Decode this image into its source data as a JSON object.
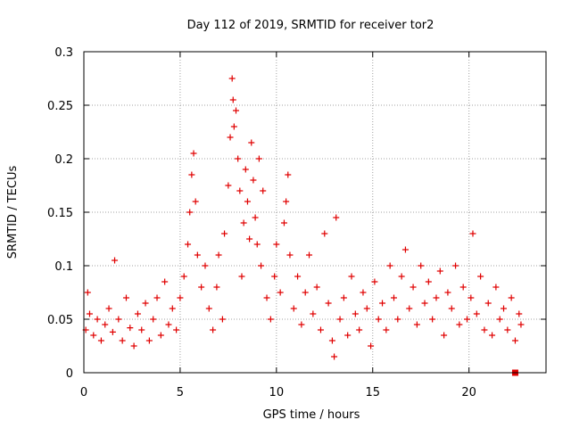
{
  "chart_data": {
    "type": "scatter",
    "title": "Day 112 of 2019, SRMTID for receiver tor2",
    "xlabel": "GPS time / hours",
    "ylabel": "SRMTID / TECUs",
    "xlim": [
      0,
      24
    ],
    "ylim": [
      0,
      0.3
    ],
    "xticks": [
      0,
      5,
      10,
      15,
      20
    ],
    "xtick_labels": [
      "0",
      "5",
      "10",
      "15",
      "20"
    ],
    "yticks": [
      0,
      0.05,
      0.1,
      0.15,
      0.2,
      0.25,
      0.3
    ],
    "ytick_labels": [
      "0",
      "0.05",
      "0.1",
      "0.15",
      "0.2",
      "0.25",
      "0.3"
    ],
    "grid": true,
    "series": [
      {
        "name": "SRMTID",
        "marker": "plus",
        "color": "#e00000",
        "points": [
          [
            0.1,
            0.04
          ],
          [
            0.2,
            0.075
          ],
          [
            0.3,
            0.055
          ],
          [
            0.5,
            0.035
          ],
          [
            0.7,
            0.05
          ],
          [
            0.9,
            0.03
          ],
          [
            1.1,
            0.045
          ],
          [
            1.3,
            0.06
          ],
          [
            1.5,
            0.038
          ],
          [
            1.6,
            0.105
          ],
          [
            1.8,
            0.05
          ],
          [
            2.0,
            0.03
          ],
          [
            2.2,
            0.07
          ],
          [
            2.4,
            0.042
          ],
          [
            2.6,
            0.025
          ],
          [
            2.8,
            0.055
          ],
          [
            3.0,
            0.04
          ],
          [
            3.2,
            0.065
          ],
          [
            3.4,
            0.03
          ],
          [
            3.6,
            0.05
          ],
          [
            3.8,
            0.07
          ],
          [
            4.0,
            0.035
          ],
          [
            4.2,
            0.085
          ],
          [
            4.4,
            0.045
          ],
          [
            4.6,
            0.06
          ],
          [
            4.8,
            0.04
          ],
          [
            5.0,
            0.07
          ],
          [
            5.2,
            0.09
          ],
          [
            5.4,
            0.12
          ],
          [
            5.5,
            0.15
          ],
          [
            5.6,
            0.185
          ],
          [
            5.7,
            0.205
          ],
          [
            5.8,
            0.16
          ],
          [
            5.9,
            0.11
          ],
          [
            6.1,
            0.08
          ],
          [
            6.3,
            0.1
          ],
          [
            6.5,
            0.06
          ],
          [
            6.7,
            0.04
          ],
          [
            6.9,
            0.08
          ],
          [
            7.0,
            0.11
          ],
          [
            7.2,
            0.05
          ],
          [
            7.3,
            0.13
          ],
          [
            7.5,
            0.175
          ],
          [
            7.6,
            0.22
          ],
          [
            7.7,
            0.275
          ],
          [
            7.75,
            0.255
          ],
          [
            7.8,
            0.23
          ],
          [
            7.9,
            0.245
          ],
          [
            8.0,
            0.2
          ],
          [
            8.1,
            0.17
          ],
          [
            8.2,
            0.09
          ],
          [
            8.3,
            0.14
          ],
          [
            8.4,
            0.19
          ],
          [
            8.5,
            0.16
          ],
          [
            8.6,
            0.125
          ],
          [
            8.7,
            0.215
          ],
          [
            8.8,
            0.18
          ],
          [
            8.9,
            0.145
          ],
          [
            9.0,
            0.12
          ],
          [
            9.1,
            0.2
          ],
          [
            9.2,
            0.1
          ],
          [
            9.3,
            0.17
          ],
          [
            9.5,
            0.07
          ],
          [
            9.7,
            0.05
          ],
          [
            9.9,
            0.09
          ],
          [
            10.0,
            0.12
          ],
          [
            10.2,
            0.075
          ],
          [
            10.4,
            0.14
          ],
          [
            10.5,
            0.16
          ],
          [
            10.6,
            0.185
          ],
          [
            10.7,
            0.11
          ],
          [
            10.9,
            0.06
          ],
          [
            11.1,
            0.09
          ],
          [
            11.3,
            0.045
          ],
          [
            11.5,
            0.075
          ],
          [
            11.7,
            0.11
          ],
          [
            11.9,
            0.055
          ],
          [
            12.1,
            0.08
          ],
          [
            12.3,
            0.04
          ],
          [
            12.5,
            0.13
          ],
          [
            12.7,
            0.065
          ],
          [
            12.9,
            0.03
          ],
          [
            13.0,
            0.015
          ],
          [
            13.1,
            0.145
          ],
          [
            13.3,
            0.05
          ],
          [
            13.5,
            0.07
          ],
          [
            13.7,
            0.035
          ],
          [
            13.9,
            0.09
          ],
          [
            14.1,
            0.055
          ],
          [
            14.3,
            0.04
          ],
          [
            14.5,
            0.075
          ],
          [
            14.7,
            0.06
          ],
          [
            14.9,
            0.025
          ],
          [
            15.1,
            0.085
          ],
          [
            15.3,
            0.05
          ],
          [
            15.5,
            0.065
          ],
          [
            15.7,
            0.04
          ],
          [
            15.9,
            0.1
          ],
          [
            16.1,
            0.07
          ],
          [
            16.3,
            0.05
          ],
          [
            16.5,
            0.09
          ],
          [
            16.7,
            0.115
          ],
          [
            16.9,
            0.06
          ],
          [
            17.1,
            0.08
          ],
          [
            17.3,
            0.045
          ],
          [
            17.5,
            0.1
          ],
          [
            17.7,
            0.065
          ],
          [
            17.9,
            0.085
          ],
          [
            18.1,
            0.05
          ],
          [
            18.3,
            0.07
          ],
          [
            18.5,
            0.095
          ],
          [
            18.7,
            0.035
          ],
          [
            18.9,
            0.075
          ],
          [
            19.1,
            0.06
          ],
          [
            19.3,
            0.1
          ],
          [
            19.5,
            0.045
          ],
          [
            19.7,
            0.08
          ],
          [
            19.9,
            0.05
          ],
          [
            20.1,
            0.07
          ],
          [
            20.2,
            0.13
          ],
          [
            20.4,
            0.055
          ],
          [
            20.6,
            0.09
          ],
          [
            20.8,
            0.04
          ],
          [
            21.0,
            0.065
          ],
          [
            21.2,
            0.035
          ],
          [
            21.4,
            0.08
          ],
          [
            21.6,
            0.05
          ],
          [
            21.8,
            0.06
          ],
          [
            22.0,
            0.04
          ],
          [
            22.2,
            0.07
          ],
          [
            22.4,
            0.03
          ],
          [
            22.6,
            0.055
          ],
          [
            22.7,
            0.045
          ]
        ]
      }
    ],
    "special_markers": [
      {
        "x": 22.4,
        "y": 0.0,
        "shape": "filled-square",
        "color": "#e00000"
      }
    ]
  }
}
